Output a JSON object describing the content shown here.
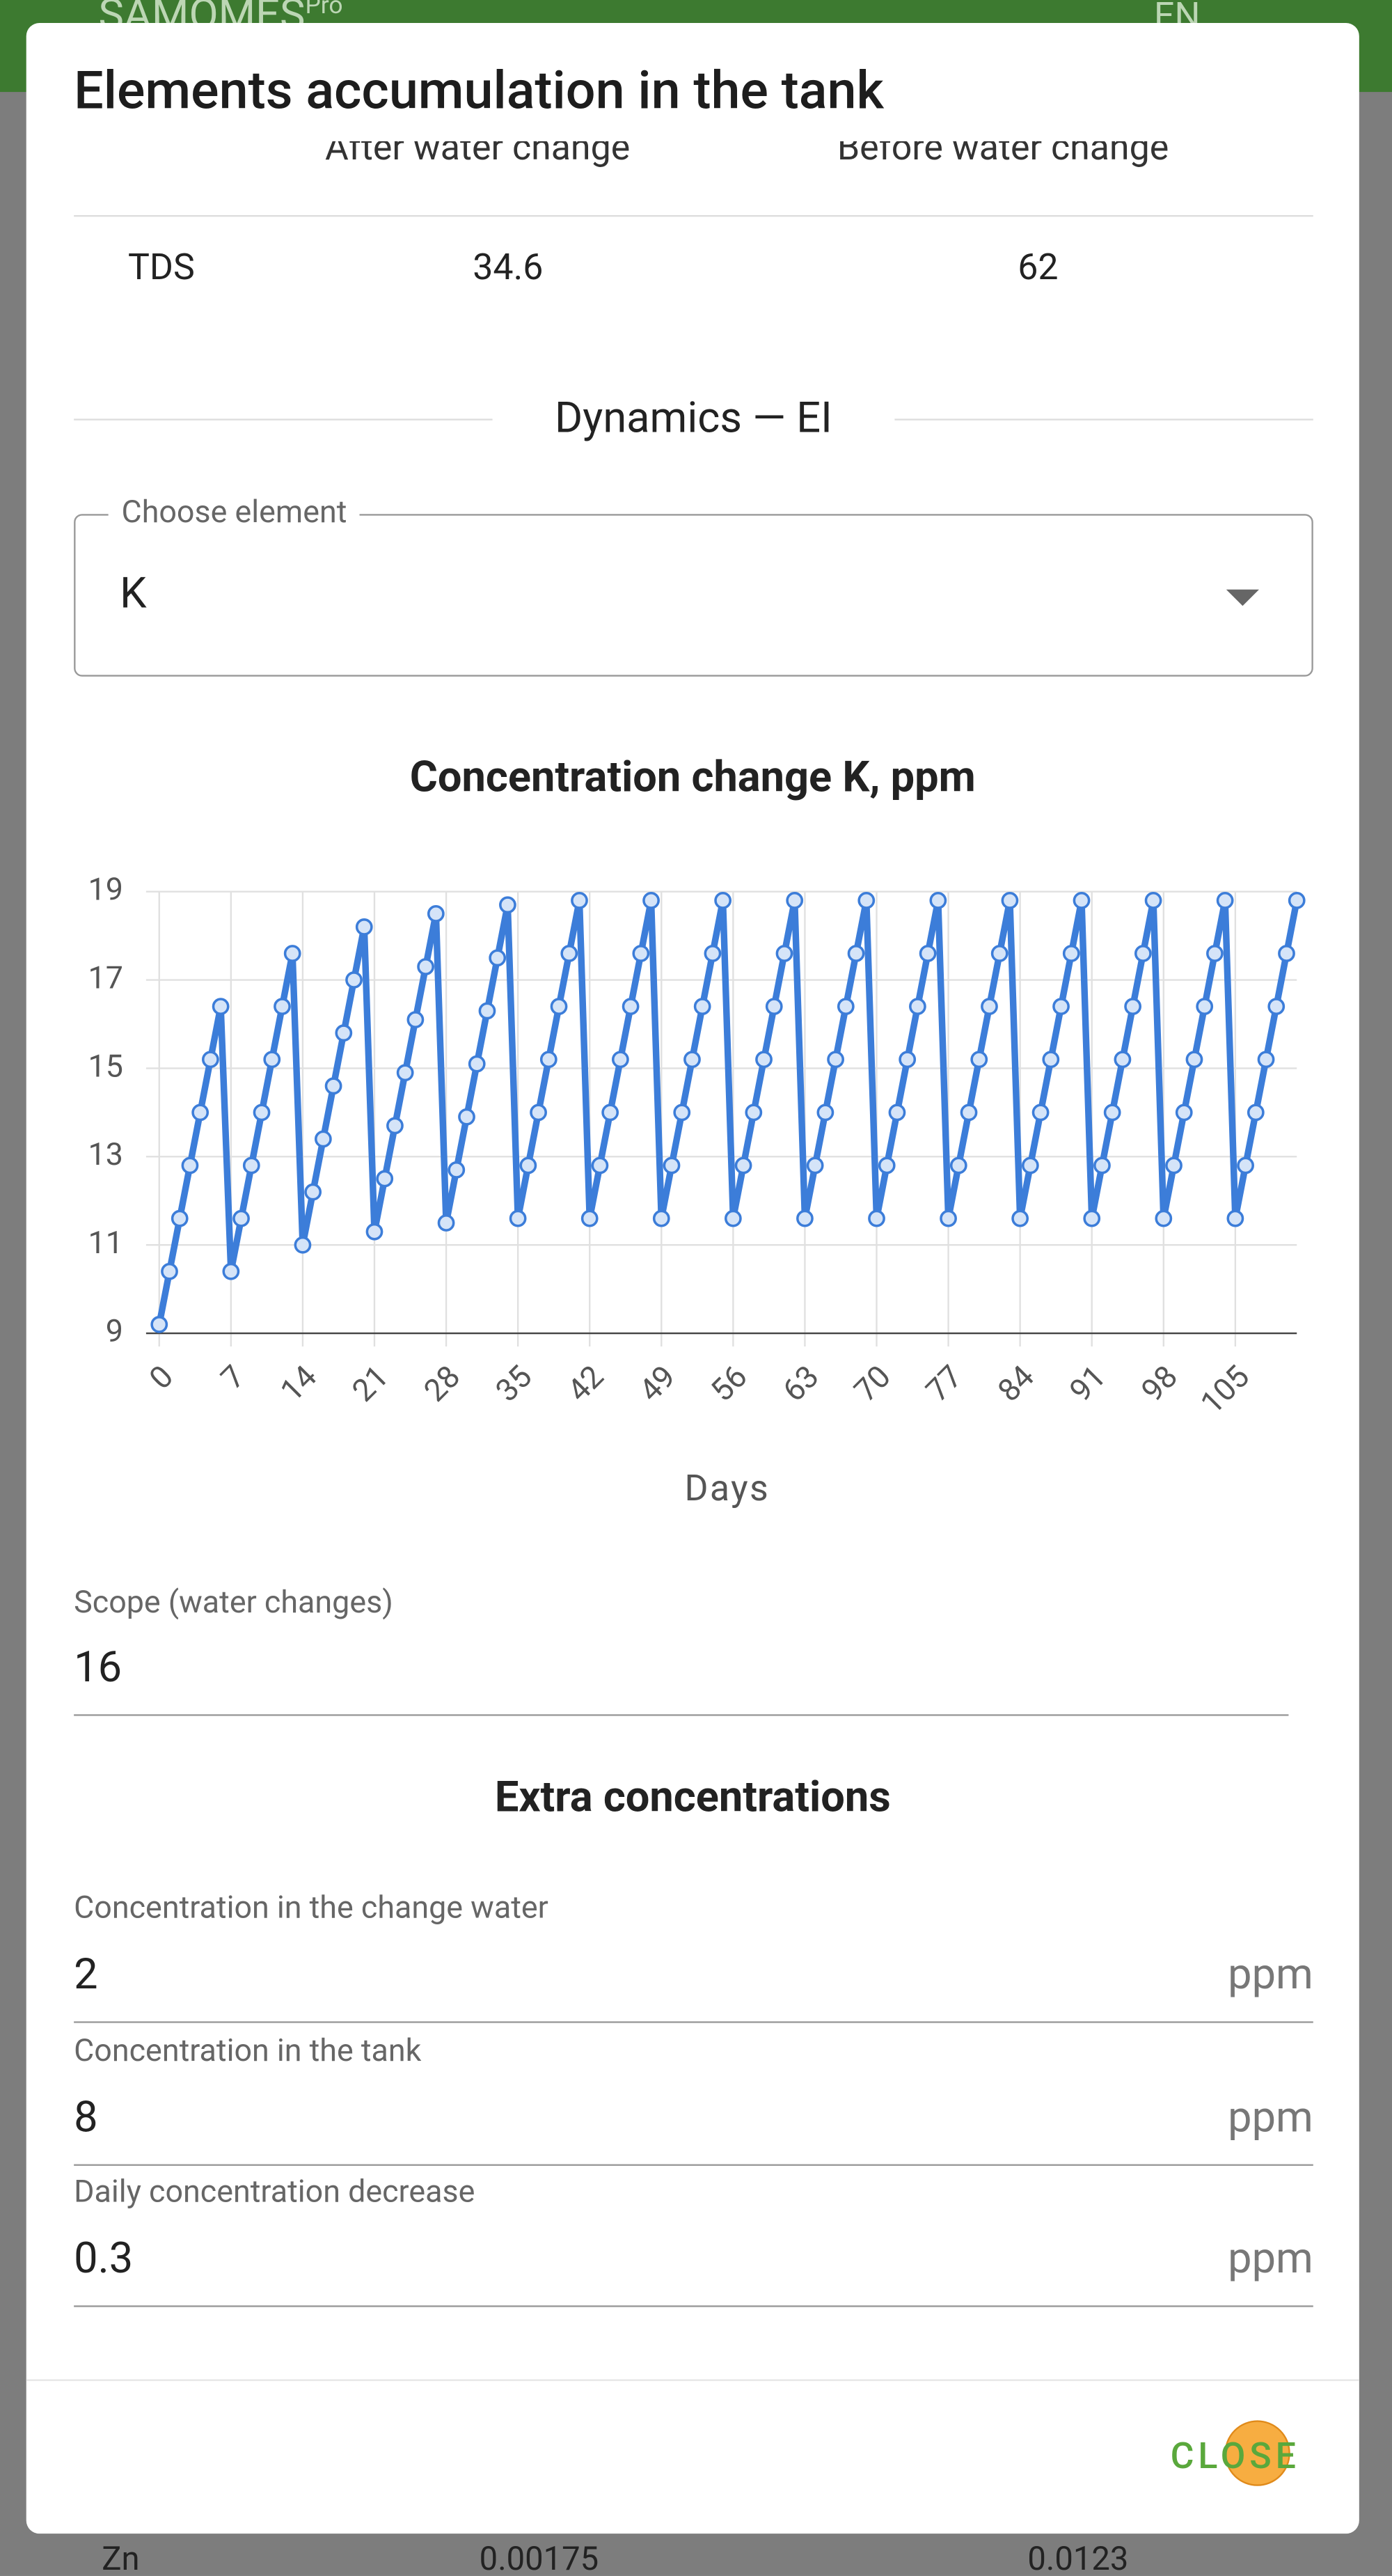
{
  "background": {
    "app_name": "SAMOMES",
    "app_name_sup": "Pro",
    "language": "EN",
    "bottom_row": [
      "Zn",
      "0.00175",
      "0.0123"
    ]
  },
  "dialog": {
    "title": "Elements accumulation in the tank",
    "table": {
      "header": [
        "After water change",
        "Before water change"
      ],
      "rows": [
        [
          "TDS",
          "34.6",
          "62"
        ]
      ]
    },
    "section": "Dynamics — EI",
    "select": {
      "label": "Choose element",
      "value": "K"
    },
    "scope": {
      "label": "Scope (water changes)",
      "value": "16"
    },
    "extra_title": "Extra concentrations",
    "fields": [
      {
        "label": "Concentration in the change water",
        "value": "2",
        "unit": "ppm"
      },
      {
        "label": "Concentration in the tank",
        "value": "8",
        "unit": "ppm"
      },
      {
        "label": "Daily concentration decrease",
        "value": "0.3",
        "unit": "ppm"
      }
    ],
    "close": "CLOSE"
  },
  "chart_data": {
    "type": "line",
    "title": "Concentration change K, ppm",
    "xlabel": "Days",
    "color": "#3c7dd9",
    "x": [
      0,
      1,
      2,
      3,
      4,
      5,
      6,
      7,
      8,
      9,
      10,
      11,
      12,
      13,
      14,
      15,
      16,
      17,
      18,
      19,
      20,
      21,
      22,
      23,
      24,
      25,
      26,
      27,
      28,
      29,
      30,
      31,
      32,
      33,
      34,
      35,
      36,
      37,
      38,
      39,
      40,
      41,
      42,
      43,
      44,
      45,
      46,
      47,
      48,
      49,
      50,
      51,
      52,
      53,
      54,
      55,
      56,
      57,
      58,
      59,
      60,
      61,
      62,
      63,
      64,
      65,
      66,
      67,
      68,
      69,
      70,
      71,
      72,
      73,
      74,
      75,
      76,
      77,
      78,
      79,
      80,
      81,
      82,
      83,
      84,
      85,
      86,
      87,
      88,
      89,
      90,
      91,
      92,
      93,
      94,
      95,
      96,
      97,
      98,
      99,
      100,
      101,
      102,
      103,
      104,
      105,
      106,
      107,
      108,
      109,
      110,
      111
    ],
    "values": [
      9.2,
      10.4,
      11.6,
      12.8,
      14.0,
      15.2,
      16.4,
      10.4,
      11.6,
      12.8,
      14.0,
      15.2,
      16.4,
      17.6,
      11.0,
      12.2,
      13.4,
      14.6,
      15.8,
      17.0,
      18.2,
      11.3,
      12.5,
      13.7,
      14.9,
      16.1,
      17.3,
      18.5,
      11.5,
      12.7,
      13.9,
      15.1,
      16.3,
      17.5,
      18.7,
      11.6,
      12.8,
      14.0,
      15.2,
      16.4,
      17.6,
      18.8,
      11.6,
      12.8,
      14.0,
      15.2,
      16.4,
      17.6,
      18.8,
      11.6,
      12.8,
      14.0,
      15.2,
      16.4,
      17.6,
      18.8,
      11.6,
      12.8,
      14.0,
      15.2,
      16.4,
      17.6,
      18.8,
      11.6,
      12.8,
      14.0,
      15.2,
      16.4,
      17.6,
      18.8,
      11.6,
      12.8,
      14.0,
      15.2,
      16.4,
      17.6,
      18.8,
      11.6,
      12.8,
      14.0,
      15.2,
      16.4,
      17.6,
      18.8,
      11.6,
      12.8,
      14.0,
      15.2,
      16.4,
      17.6,
      18.8,
      11.6,
      12.8,
      14.0,
      15.2,
      16.4,
      17.6,
      18.8,
      11.6,
      12.8,
      14.0,
      15.2,
      16.4,
      17.6,
      18.8,
      11.6,
      12.8,
      14.0,
      15.2,
      16.4,
      17.6,
      18.8
    ],
    "xlim": [
      0,
      111
    ],
    "ylim": [
      9,
      19
    ],
    "xticks": [
      0,
      7,
      14,
      21,
      28,
      35,
      42,
      49,
      56,
      63,
      70,
      77,
      84,
      91,
      98,
      105
    ],
    "yticks": [
      9,
      11,
      13,
      15,
      17,
      19
    ],
    "grid": true
  }
}
